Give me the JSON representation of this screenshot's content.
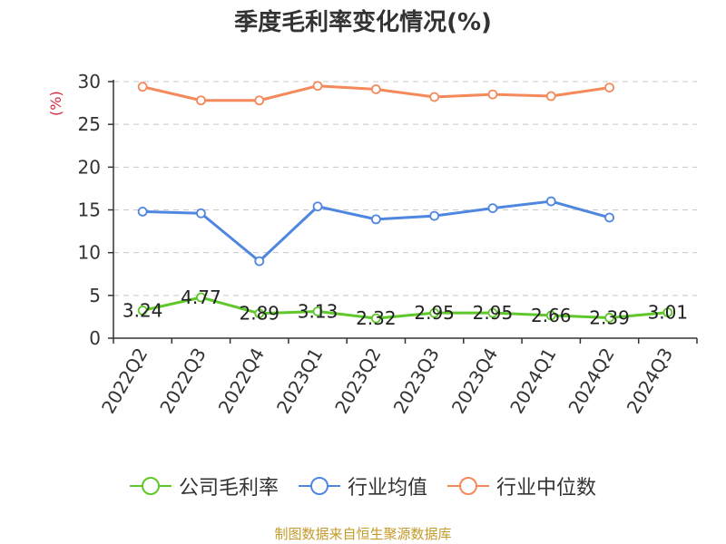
{
  "page": {
    "title": "季度毛利率变化情况(%)",
    "source": "制图数据来自恒生聚源数据库"
  },
  "chart_data": {
    "type": "line",
    "title": "季度毛利率变化情况(%)",
    "ylabel": "(%)",
    "xlabel": "",
    "ylim": [
      0,
      30
    ],
    "yticks": [
      0,
      5,
      10,
      15,
      20,
      25,
      30
    ],
    "grid": true,
    "legend_position": "bottom",
    "categories": [
      "2022Q2",
      "2022Q3",
      "2022Q4",
      "2023Q1",
      "2023Q2",
      "2023Q3",
      "2023Q4",
      "2024Q1",
      "2024Q2",
      "2024Q3"
    ],
    "series": [
      {
        "name": "公司毛利率",
        "color": "#5fc729",
        "values": [
          3.24,
          4.77,
          2.89,
          3.13,
          2.32,
          2.95,
          2.95,
          2.66,
          2.39,
          3.01
        ],
        "data_labels": [
          "3.24",
          "4.77",
          "2.89",
          "3.13",
          "2.32",
          "2.95",
          "2.95",
          "2.66",
          "2.39",
          "3.01"
        ]
      },
      {
        "name": "行业均值",
        "color": "#4f86e0",
        "values": [
          14.8,
          14.6,
          9.0,
          15.4,
          13.9,
          14.3,
          15.2,
          16.0,
          14.1,
          null
        ]
      },
      {
        "name": "行业中位数",
        "color": "#f5895a",
        "values": [
          29.4,
          27.8,
          27.8,
          29.5,
          29.1,
          28.2,
          28.5,
          28.3,
          29.3,
          null
        ]
      }
    ]
  }
}
